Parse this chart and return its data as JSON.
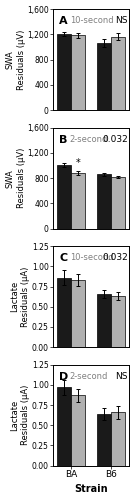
{
  "panels": [
    {
      "label": "A",
      "subtitle": "10-second",
      "pvalue": "NS",
      "ylabel1": "SWA",
      "ylabel2": "Residuals (μV)",
      "ylim": [
        0,
        1600
      ],
      "yticks": [
        0,
        400,
        800,
        1200,
        1600
      ],
      "ytick_labels": [
        "0",
        "400",
        "800",
        "1,200",
        "1,600"
      ],
      "bars": [
        1210,
        1185,
        1060,
        1165
      ],
      "errors": [
        35,
        40,
        60,
        55
      ]
    },
    {
      "label": "B",
      "subtitle": "2-second",
      "pvalue": "0.032",
      "ylabel1": "SWA",
      "ylabel2": "Residuals (μV)",
      "ylim": [
        0,
        1600
      ],
      "yticks": [
        0,
        400,
        800,
        1200,
        1600
      ],
      "ytick_labels": [
        "0",
        "400",
        "800",
        "1,200",
        "1,600"
      ],
      "bars": [
        1010,
        880,
        860,
        820
      ],
      "errors": [
        30,
        35,
        25,
        20
      ],
      "asterisk": true
    },
    {
      "label": "C",
      "subtitle": "10-second",
      "pvalue": "0.032",
      "ylabel1": "Lactate",
      "ylabel2": "Residuals (μA)",
      "ylim": [
        0.0,
        1.25
      ],
      "yticks": [
        0.0,
        0.25,
        0.5,
        0.75,
        1.0,
        1.25
      ],
      "ytick_labels": [
        "0.00",
        "0.25",
        "0.50",
        "0.75",
        "1.00",
        "1.25"
      ],
      "bars": [
        0.86,
        0.83,
        0.66,
        0.63
      ],
      "errors": [
        0.09,
        0.07,
        0.05,
        0.05
      ]
    },
    {
      "label": "D",
      "subtitle": "2-second",
      "pvalue": "NS",
      "ylabel1": "Lactate",
      "ylabel2": "Residuals (μA)",
      "ylim": [
        0.0,
        1.25
      ],
      "yticks": [
        0.0,
        0.25,
        0.5,
        0.75,
        1.0,
        1.25
      ],
      "ytick_labels": [
        "0.00",
        "0.25",
        "0.50",
        "0.75",
        "1.00",
        "1.25"
      ],
      "bars": [
        0.97,
        0.87,
        0.64,
        0.66
      ],
      "errors": [
        0.09,
        0.08,
        0.07,
        0.08
      ],
      "xlabel": "Strain",
      "xtick_labels": [
        "BA",
        "B6"
      ]
    }
  ],
  "bar_colors": [
    "#1a1a1a",
    "#b0b0b0",
    "#1a1a1a",
    "#b0b0b0"
  ],
  "bar_width": 0.28,
  "edgecolor": "black",
  "background": "white",
  "panel_label_fontsize": 8,
  "subtitle_fontsize": 6,
  "pvalue_fontsize": 6.5,
  "tick_fontsize": 5.5,
  "ylabel_fontsize": 6,
  "xlabel_fontsize": 7
}
